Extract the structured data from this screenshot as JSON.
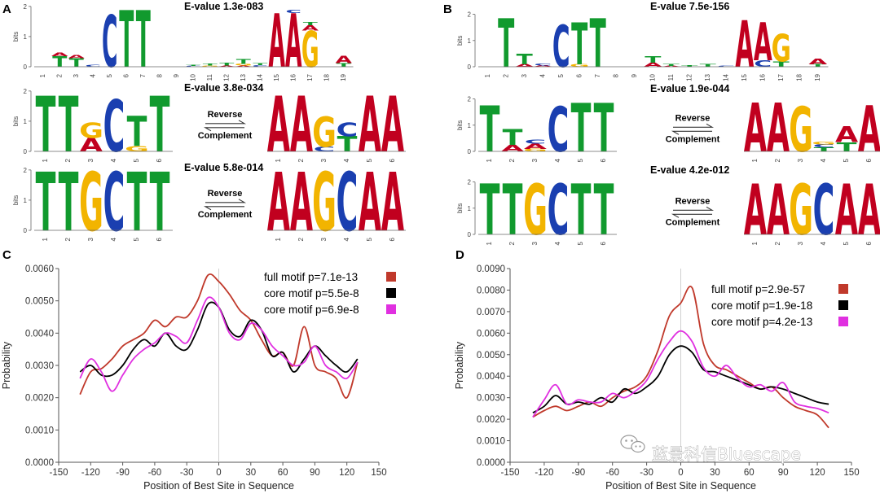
{
  "panels": {
    "A": "A",
    "B": "B",
    "C": "C",
    "D": "D"
  },
  "colors": {
    "A": "#c1001f",
    "C": "#1a3fb0",
    "G": "#f2b400",
    "T": "#119a2e",
    "full": "#c0392b",
    "core1": "#000000",
    "core2": "#e030e0"
  },
  "logos": {
    "reverse_label": "Reverse",
    "complement_label": "Complement",
    "ylabel": "bits",
    "ytick_labels": [
      "2",
      "1",
      "0"
    ],
    "A": [
      {
        "evalue": "E-value 1.3e-083",
        "kind": "full",
        "positions": [
          [],
          [
            [
              "T",
              0.35
            ],
            [
              "A",
              0.12
            ]
          ],
          [
            [
              "T",
              0.28
            ],
            [
              "A",
              0.1
            ]
          ],
          [
            [
              "C",
              0.06
            ]
          ],
          [
            [
              "C",
              1.72
            ]
          ],
          [
            [
              "T",
              1.88
            ]
          ],
          [
            [
              "T",
              1.88
            ]
          ],
          [],
          [],
          [
            [
              "C",
              0.03
            ],
            [
              "T",
              0.04
            ]
          ],
          [
            [
              "G",
              0.04
            ],
            [
              "T",
              0.06
            ]
          ],
          [
            [
              "A",
              0.04
            ],
            [
              "T",
              0.08
            ]
          ],
          [
            [
              "A",
              0.04
            ],
            [
              "G",
              0.06
            ],
            [
              "T",
              0.16
            ]
          ],
          [
            [
              "C",
              0.05
            ],
            [
              "T",
              0.06
            ]
          ],
          [
            [
              "A",
              1.78
            ]
          ],
          [
            [
              "A",
              1.78
            ],
            [
              "C",
              0.1
            ]
          ],
          [
            [
              "G",
              1.2
            ],
            [
              "A",
              0.18
            ],
            [
              "T",
              0.1
            ]
          ],
          [],
          [
            [
              "T",
              0.12
            ],
            [
              "A",
              0.25
            ]
          ]
        ]
      },
      {
        "evalue": "E-value 3.8e-034",
        "kind": "core",
        "positions": [
          [
            [
              "T",
              1.85
            ]
          ],
          [
            [
              "T",
              1.85
            ]
          ],
          [
            [
              "A",
              0.45
            ],
            [
              "G",
              0.5
            ]
          ],
          [
            [
              "C",
              1.72
            ]
          ],
          [
            [
              "G",
              0.18
            ],
            [
              "T",
              1.0
            ]
          ],
          [
            [
              "T",
              1.85
            ]
          ]
        ],
        "rc_positions": [
          [
            [
              "A",
              1.85
            ]
          ],
          [
            [
              "A",
              1.85
            ]
          ],
          [
            [
              "C",
              0.15
            ],
            [
              "G",
              1.0
            ]
          ],
          [
            [
              "T",
              0.5
            ],
            [
              "C",
              0.45
            ]
          ],
          [
            [
              "A",
              1.85
            ]
          ],
          [
            [
              "A",
              1.85
            ]
          ]
        ]
      },
      {
        "evalue": "E-value 5.8e-014",
        "kind": "core",
        "positions": [
          [
            [
              "T",
              1.95
            ]
          ],
          [
            [
              "T",
              1.95
            ]
          ],
          [
            [
              "G",
              1.95
            ]
          ],
          [
            [
              "C",
              1.95
            ]
          ],
          [
            [
              "T",
              1.95
            ]
          ],
          [
            [
              "T",
              1.95
            ]
          ]
        ],
        "rc_positions": [
          [
            [
              "A",
              1.95
            ]
          ],
          [
            [
              "A",
              1.95
            ]
          ],
          [
            [
              "G",
              1.95
            ]
          ],
          [
            [
              "C",
              1.95
            ]
          ],
          [
            [
              "A",
              1.95
            ]
          ],
          [
            [
              "A",
              1.95
            ]
          ]
        ]
      }
    ],
    "B": [
      {
        "evalue": "E-value 7.5e-156",
        "kind": "full",
        "positions": [
          [],
          [
            [
              "T",
              1.85
            ]
          ],
          [
            [
              "A",
              0.1
            ],
            [
              "T",
              0.4
            ]
          ],
          [
            [
              "A",
              0.05
            ],
            [
              "C",
              0.07
            ]
          ],
          [
            [
              "C",
              1.6
            ]
          ],
          [
            [
              "G",
              0.1
            ],
            [
              "T",
              1.6
            ]
          ],
          [
            [
              "T",
              1.85
            ]
          ],
          [],
          [],
          [
            [
              "A",
              0.15
            ],
            [
              "T",
              0.25
            ]
          ],
          [
            [
              "A",
              0.03
            ],
            [
              "T",
              0.08
            ]
          ],
          [
            [
              "T",
              0.06
            ]
          ],
          [
            [
              "T",
              0.1
            ]
          ],
          [
            [
              "C",
              0.04
            ]
          ],
          [
            [
              "A",
              1.78
            ]
          ],
          [
            [
              "C",
              0.25
            ],
            [
              "A",
              1.45
            ]
          ],
          [
            [
              "T",
              0.2
            ],
            [
              "G",
              1.05
            ]
          ],
          [],
          [
            [
              "T",
              0.1
            ],
            [
              "A",
              0.22
            ]
          ]
        ]
      },
      {
        "evalue": "E-value 1.9e-044",
        "kind": "core",
        "positions": [
          [
            [
              "T",
              1.75
            ]
          ],
          [
            [
              "A",
              0.25
            ],
            [
              "T",
              0.6
            ]
          ],
          [
            [
              "G",
              0.1
            ],
            [
              "A",
              0.2
            ],
            [
              "C",
              0.15
            ]
          ],
          [
            [
              "C",
              1.72
            ]
          ],
          [
            [
              "T",
              1.85
            ]
          ],
          [
            [
              "T",
              1.85
            ]
          ]
        ],
        "rc_positions": [
          [
            [
              "A",
              1.85
            ]
          ],
          [
            [
              "A",
              1.85
            ]
          ],
          [
            [
              "G",
              1.72
            ]
          ],
          [
            [
              "T",
              0.15
            ],
            [
              "C",
              0.12
            ],
            [
              "G",
              0.1
            ]
          ],
          [
            [
              "T",
              0.35
            ],
            [
              "A",
              0.6
            ]
          ],
          [
            [
              "A",
              1.75
            ]
          ]
        ]
      },
      {
        "evalue": "E-value 4.2e-012",
        "kind": "core",
        "positions": [
          [
            [
              "T",
              1.95
            ]
          ],
          [
            [
              "T",
              1.95
            ]
          ],
          [
            [
              "G",
              1.95
            ]
          ],
          [
            [
              "C",
              1.95
            ]
          ],
          [
            [
              "T",
              1.95
            ]
          ],
          [
            [
              "T",
              1.95
            ]
          ]
        ],
        "rc_positions": [
          [
            [
              "A",
              1.95
            ]
          ],
          [
            [
              "A",
              1.95
            ]
          ],
          [
            [
              "G",
              1.95
            ]
          ],
          [
            [
              "C",
              1.95
            ]
          ],
          [
            [
              "A",
              1.95
            ]
          ],
          [
            [
              "A",
              1.95
            ]
          ]
        ]
      }
    ]
  },
  "chart_data": [
    {
      "type": "line",
      "panel": "C",
      "xlabel": "Position of Best Site in Sequence",
      "ylabel": "Probability",
      "xlim": [
        -150,
        150
      ],
      "ylim": [
        0,
        0.006
      ],
      "xticks": [
        -150,
        -120,
        -90,
        -60,
        -30,
        0,
        30,
        60,
        90,
        120,
        150
      ],
      "yticks": [
        "0.0000",
        "0.0010",
        "0.0020",
        "0.0030",
        "0.0040",
        "0.0050",
        "0.0060"
      ],
      "legend_position": "top-right",
      "x": [
        -130,
        -120,
        -110,
        -100,
        -90,
        -80,
        -70,
        -60,
        -50,
        -40,
        -30,
        -20,
        -10,
        0,
        10,
        20,
        30,
        40,
        50,
        60,
        70,
        80,
        90,
        100,
        110,
        120,
        130
      ],
      "series": [
        {
          "name": "full motif  p=7.1e-13",
          "color_key": "full",
          "values": [
            0.0021,
            0.0028,
            0.0029,
            0.0032,
            0.0036,
            0.0038,
            0.004,
            0.0044,
            0.0042,
            0.0045,
            0.0045,
            0.005,
            0.0058,
            0.0056,
            0.0052,
            0.0047,
            0.0044,
            0.0038,
            0.0033,
            0.0034,
            0.003,
            0.0042,
            0.003,
            0.0028,
            0.0026,
            0.002,
            0.0031
          ]
        },
        {
          "name": "core motif  p=5.5e-8",
          "color_key": "core1",
          "values": [
            0.0028,
            0.003,
            0.0027,
            0.0027,
            0.003,
            0.0035,
            0.0038,
            0.0036,
            0.004,
            0.0036,
            0.0035,
            0.0041,
            0.0049,
            0.0048,
            0.0041,
            0.0039,
            0.0044,
            0.0041,
            0.0033,
            0.0034,
            0.0028,
            0.0032,
            0.0036,
            0.0033,
            0.003,
            0.0028,
            0.0032
          ]
        },
        {
          "name": "core motif  p=6.9e-8",
          "color_key": "core2",
          "values": [
            0.0026,
            0.0032,
            0.0028,
            0.0022,
            0.0027,
            0.0032,
            0.0035,
            0.0037,
            0.004,
            0.0039,
            0.0037,
            0.0044,
            0.0051,
            0.0048,
            0.004,
            0.0038,
            0.0043,
            0.0041,
            0.0036,
            0.0033,
            0.003,
            0.0031,
            0.0036,
            0.003,
            0.0028,
            0.0026,
            0.0031
          ]
        }
      ]
    },
    {
      "type": "line",
      "panel": "D",
      "xlabel": "Position of Best Site in Sequence",
      "ylabel": "Probability",
      "xlim": [
        -150,
        150
      ],
      "ylim": [
        0,
        0.009
      ],
      "xticks": [
        -150,
        -120,
        -90,
        -60,
        -30,
        0,
        30,
        60,
        90,
        120,
        150
      ],
      "yticks": [
        "0.0000",
        "0.0010",
        "0.0020",
        "0.0030",
        "0.0040",
        "0.0050",
        "0.0060",
        "0.0070",
        "0.0080",
        "0.0090"
      ],
      "legend_position": "top-right",
      "x": [
        -130,
        -120,
        -110,
        -100,
        -90,
        -80,
        -70,
        -60,
        -50,
        -40,
        -30,
        -20,
        -10,
        0,
        10,
        20,
        30,
        40,
        50,
        60,
        70,
        80,
        90,
        100,
        110,
        120,
        130
      ],
      "series": [
        {
          "name": "full motif  p=2.9e-57",
          "color_key": "full",
          "values": [
            0.0021,
            0.0024,
            0.0026,
            0.0024,
            0.0026,
            0.0028,
            0.0026,
            0.003,
            0.0033,
            0.0035,
            0.004,
            0.0052,
            0.0068,
            0.0074,
            0.0081,
            0.0055,
            0.0045,
            0.0043,
            0.004,
            0.0037,
            0.0034,
            0.0035,
            0.003,
            0.0026,
            0.0024,
            0.0022,
            0.0016
          ]
        },
        {
          "name": "core motif  p=1.9e-18",
          "color_key": "core1",
          "values": [
            0.0023,
            0.0026,
            0.0031,
            0.0027,
            0.0028,
            0.0027,
            0.003,
            0.0028,
            0.0034,
            0.0032,
            0.0035,
            0.004,
            0.005,
            0.0054,
            0.0051,
            0.0043,
            0.0042,
            0.004,
            0.0038,
            0.0036,
            0.0034,
            0.0035,
            0.0034,
            0.0032,
            0.003,
            0.0028,
            0.0027
          ]
        },
        {
          "name": "core motif  p=4.2e-13",
          "color_key": "core2",
          "values": [
            0.0021,
            0.0029,
            0.0036,
            0.0027,
            0.0029,
            0.0028,
            0.0028,
            0.0032,
            0.003,
            0.0033,
            0.0038,
            0.0048,
            0.0056,
            0.0061,
            0.0056,
            0.0044,
            0.004,
            0.0045,
            0.0039,
            0.0035,
            0.0036,
            0.0033,
            0.0037,
            0.0028,
            0.0026,
            0.0025,
            0.0023
          ]
        }
      ]
    }
  ],
  "watermark": {
    "text": "蓝景科信Bluescape",
    "icon": "wechat-icon"
  }
}
